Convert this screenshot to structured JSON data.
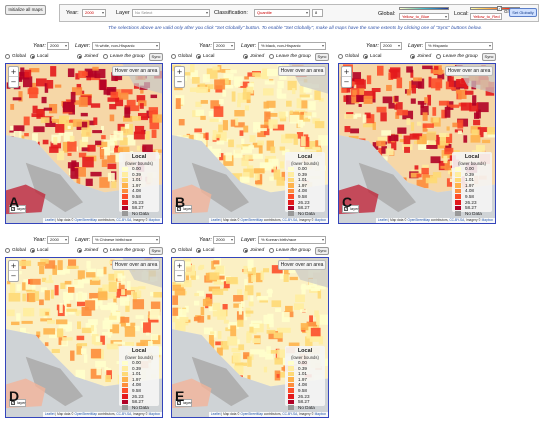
{
  "toolbar": {
    "initialize_label": "Initialize all maps",
    "year_label": "Year:",
    "year_value": "2000",
    "layer_label": "Layer",
    "layer_value": "No Select",
    "classification_label": "Classification:",
    "classification_value": "Quantile",
    "classes_value": "8",
    "global_label": "Global:",
    "global_ramp": "Yellow_to_Blue",
    "local_label": "Local:",
    "local_ramp": "Yellow_to_Red",
    "grouping_label": "Grouping All",
    "set_globally_label": "Set Globally"
  },
  "note": "The selections above are valid only after you click \"Set Globally\" button. To enable \"Set Globally\", make all maps have the same extents by clicking one of \"Sync\" buttons below.",
  "common": {
    "year_label": "Year:",
    "year_value": "2000",
    "layer_label": "Layer:",
    "global_label": "Global",
    "local_label": "Local",
    "joined_label": "Joined",
    "leave_label": "Leave the group",
    "sync_label": "Sync",
    "hover_text": "Hover over an area",
    "legend_title": "Local",
    "legend_sub": "(lower bounds)",
    "layer_toggle": "layer",
    "attrib_leaflet": "Leaflet",
    "attrib_text": " | Map data © ",
    "attrib_osm": "OpenStreetMap",
    "attrib_rest": " contributors, ",
    "attrib_cc": "CC-BY-SA",
    "attrib_img": ", Imagery © ",
    "attrib_mb": "Mapbox"
  },
  "legend": {
    "classes": [
      {
        "value": "0.00",
        "color": "#ffffcc"
      },
      {
        "value": "0.39",
        "color": "#ffeda0"
      },
      {
        "value": "1.01",
        "color": "#fed976"
      },
      {
        "value": "1.97",
        "color": "#feb24c"
      },
      {
        "value": "4.08",
        "color": "#fd8d3c"
      },
      {
        "value": "9.58",
        "color": "#fc4e2a"
      },
      {
        "value": "26.23",
        "color": "#e31a1c"
      },
      {
        "value": "58.27",
        "color": "#b10026"
      },
      {
        "value": "No Data",
        "color": "#999999"
      }
    ]
  },
  "maps": [
    {
      "letter": "A",
      "layer_value": "% white, non-Hispanic",
      "intensity": "high"
    },
    {
      "letter": "B",
      "layer_value": "% black, non-Hispanic",
      "intensity": "low"
    },
    {
      "letter": "C",
      "layer_value": "% Hispanic",
      "intensity": "high"
    },
    {
      "letter": "D",
      "layer_value": "% Chinese birth/race",
      "intensity": "low"
    },
    {
      "letter": "E",
      "layer_value": "% Korean birth/race",
      "intensity": "low"
    }
  ],
  "colors": {
    "accent_blue": "#3344bb",
    "ocean": "#cfd3d6",
    "land_gray": "#b8b8b8"
  }
}
